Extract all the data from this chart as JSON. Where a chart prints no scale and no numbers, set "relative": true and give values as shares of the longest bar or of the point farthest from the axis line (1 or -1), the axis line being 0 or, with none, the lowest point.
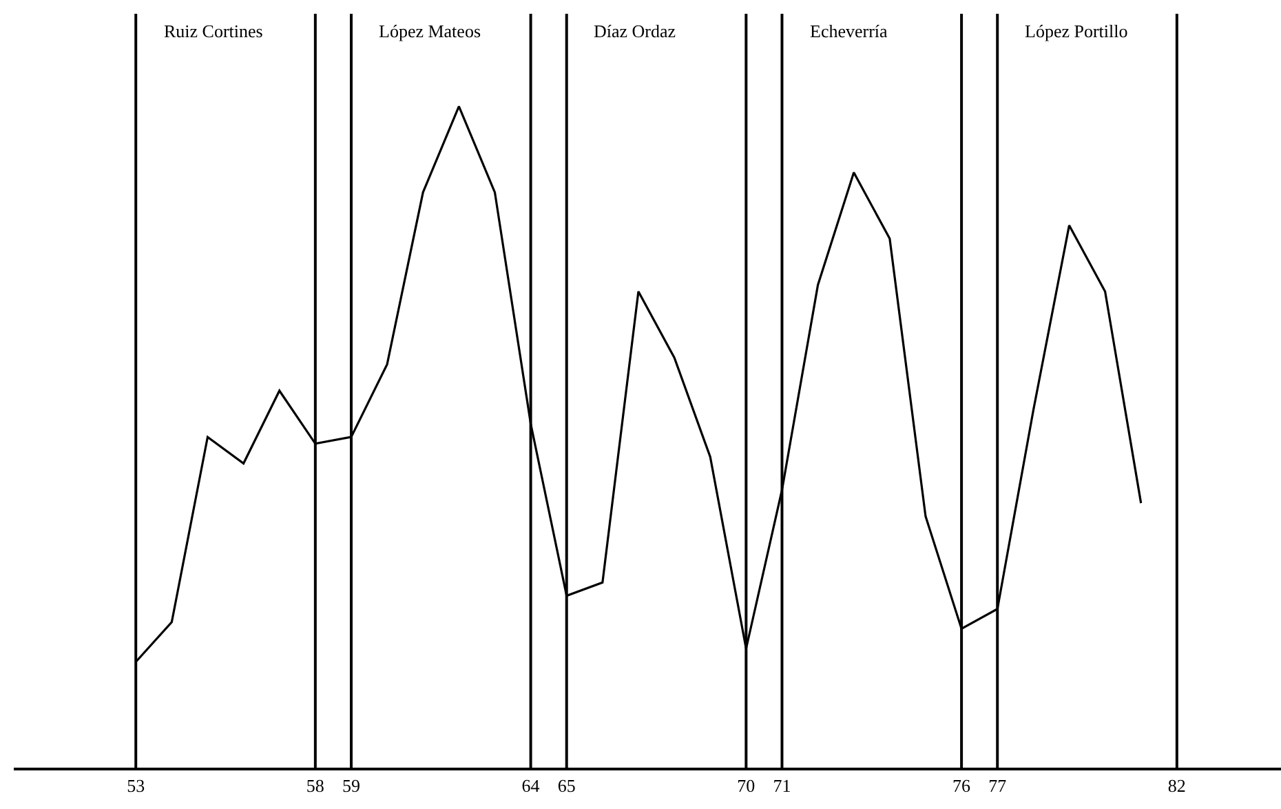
{
  "chart_data": {
    "type": "line",
    "relative": true,
    "color": "#000000",
    "x": [
      53,
      54,
      55,
      56,
      57,
      58,
      59,
      60,
      61,
      62,
      63,
      64,
      65,
      66,
      67,
      68,
      69,
      70,
      71,
      72,
      73,
      74,
      75,
      76,
      77,
      78,
      79,
      80,
      81
    ],
    "values": [
      0.16,
      0.22,
      0.5,
      0.46,
      0.57,
      0.49,
      0.5,
      0.61,
      0.87,
      1,
      0.87,
      0.52,
      0.26,
      0.28,
      0.72,
      0.62,
      0.47,
      0.18,
      0.42,
      0.73,
      0.9,
      0.8,
      0.38,
      0.21,
      0.24,
      0.54,
      0.82,
      0.72,
      0.4
    ],
    "xlim": [
      49.6,
      84.9
    ],
    "xticks": [
      53,
      58,
      59,
      64,
      65,
      70,
      71,
      76,
      77,
      82
    ],
    "ref_lines": [
      {
        "axis": "x",
        "value": 53,
        "label": "Ruiz Cortines"
      },
      {
        "axis": "x",
        "value": 58
      },
      {
        "axis": "x",
        "value": 59,
        "label": "López Mateos"
      },
      {
        "axis": "x",
        "value": 64
      },
      {
        "axis": "x",
        "value": 65,
        "label": "Díaz Ordaz"
      },
      {
        "axis": "x",
        "value": 70
      },
      {
        "axis": "x",
        "value": 71,
        "label": "Echeverría"
      },
      {
        "axis": "x",
        "value": 76
      },
      {
        "axis": "x",
        "value": 77,
        "label": "López Portillo"
      },
      {
        "axis": "x",
        "value": 82
      }
    ],
    "marker": "none",
    "line_style": "solid"
  }
}
